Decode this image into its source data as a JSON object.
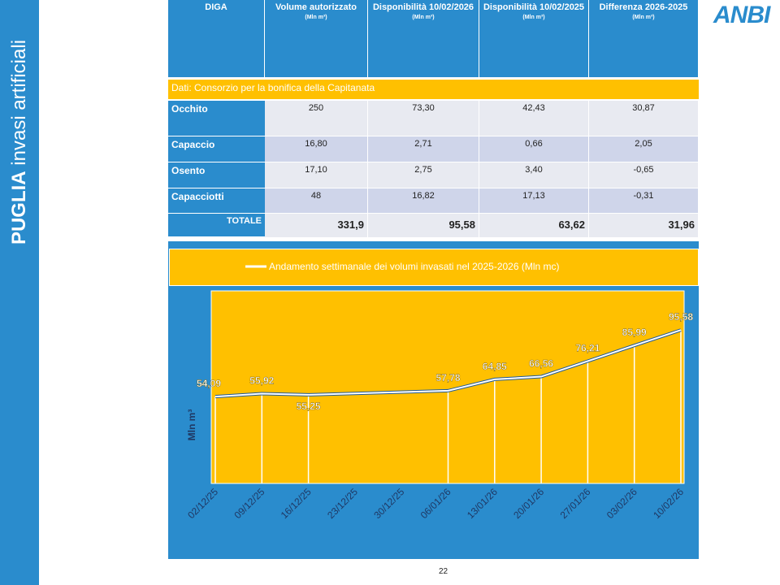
{
  "sidebar": {
    "title_bold": "PUGLIA",
    "title_rest": "invasi artificiali"
  },
  "logo": "ANBI",
  "table": {
    "header": [
      {
        "title": "DIGA"
      },
      {
        "title": "Volume autorizzato",
        "unit": "(Mln m³)"
      },
      {
        "title": "Disponibilità 10/02/2026",
        "unit": "(Mln m³)"
      },
      {
        "title": "Disponibilità 10/02/2025",
        "unit": "(Mln m³)"
      },
      {
        "title": "Differenza 2026-2025",
        "unit": "(Mln m³)"
      }
    ],
    "source": "Dati: Consorzio per la bonifica della Capitanata",
    "rows": [
      [
        "Occhito",
        "250",
        "73,30",
        "42,43",
        "30,87"
      ],
      [
        "Capaccio",
        "16,80",
        "2,71",
        "0,66",
        "2,05"
      ],
      [
        "Osento",
        "17,10",
        "2,75",
        "3,40",
        "-0,65"
      ],
      [
        "Capacciotti",
        "48",
        "16,82",
        "17,13",
        "-0,31"
      ]
    ],
    "total": [
      "TOTALE",
      "331,9",
      "95,58",
      "63,62",
      "31,96"
    ]
  },
  "chart_data": {
    "type": "line",
    "legend": "Andamento settimanale dei volumi invasati nel 2025-2026 (Mln mc)",
    "y_label": "Mln m³",
    "color": "#ffffff",
    "x": [
      "02/12/25",
      "09/12/25",
      "16/12/25",
      "06/01/26",
      "13/01/26",
      "20/01/26",
      "27/01/26",
      "03/02/26",
      "10/02/26"
    ],
    "values": [
      54.09,
      55.92,
      55.25,
      57.78,
      64.85,
      66.56,
      76.21,
      85.99,
      95.58
    ],
    "value_labels": [
      "54,09",
      "55,92",
      "55,25",
      "57,78",
      "64,85",
      "66,56",
      "76,21",
      "85,99",
      "95,58"
    ],
    "xticks": [
      "02/12/25",
      "09/12/25",
      "16/12/25",
      "23/12/25",
      "30/12/25",
      "06/01/26",
      "13/01/26",
      "20/01/26",
      "27/01/26",
      "03/02/26",
      "10/02/26"
    ],
    "ylim": [
      0,
      120
    ]
  },
  "page_number": "22"
}
